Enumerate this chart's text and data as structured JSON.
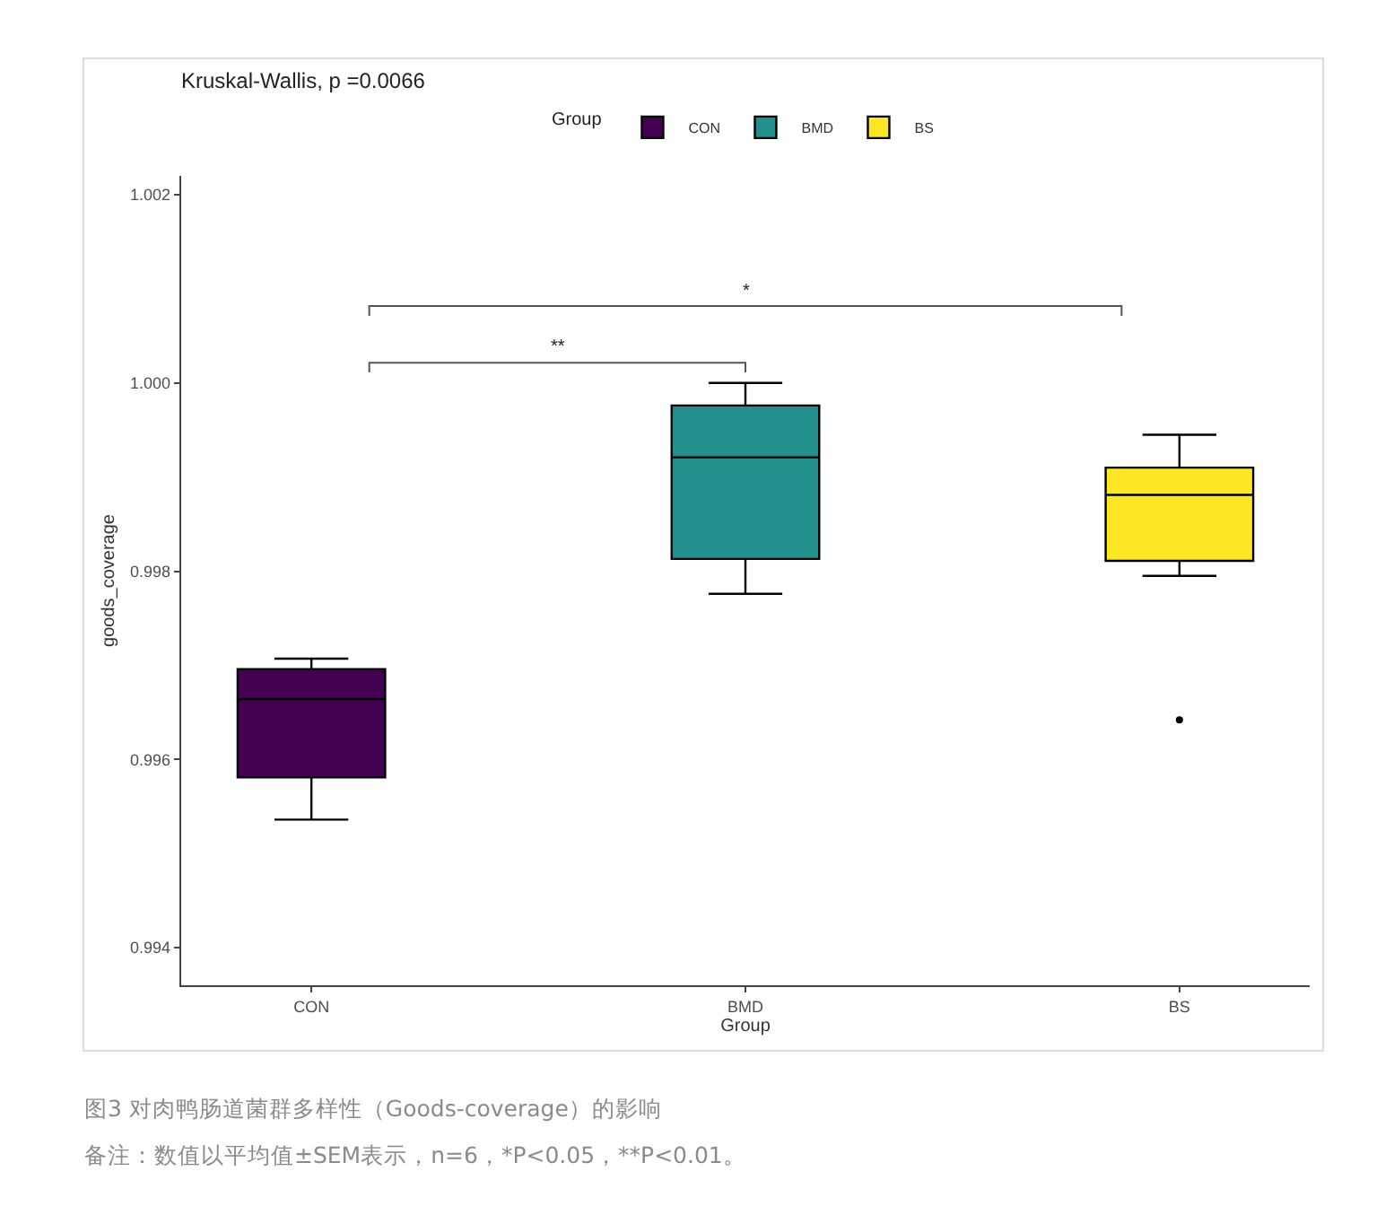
{
  "chart_data": {
    "type": "box",
    "title": "Kruskal-Wallis, p =0.0066",
    "xlabel": "Group",
    "ylabel": "goods_coverage",
    "legend_title": "Group",
    "categories": [
      "CON",
      "BMD",
      "BS"
    ],
    "series": [
      {
        "name": "CON",
        "color": "#440154",
        "boxes": [
          {
            "low": 0.99536,
            "q1": 0.99581,
            "median": 0.99664,
            "q3": 0.99696,
            "high": 0.99707
          },
          null,
          null
        ]
      },
      {
        "name": "BMD",
        "color": "#21908c",
        "boxes": [
          null,
          {
            "low": 0.99776,
            "q1": 0.99813,
            "median": 0.99921,
            "q3": 0.99976,
            "high": 1.0
          },
          null
        ]
      },
      {
        "name": "BS",
        "color": "#fde725",
        "boxes": [
          null,
          null,
          {
            "low": 0.99795,
            "q1": 0.99811,
            "median": 0.99881,
            "q3": 0.9991,
            "high": 0.99945,
            "outliers": [
              0.99642
            ]
          }
        ]
      }
    ],
    "ylim": [
      0.9936,
      1.0022
    ],
    "yticks": [
      0.994,
      0.996,
      0.998,
      {
        "value": 1,
        "label": "1.000"
      },
      1.002
    ],
    "legend": "top",
    "annotations": [
      "**",
      "*",
      "图3 对肉鸭肠道菌群多样性（Goods-coverage）的影响",
      "备注：数值以平均值±SEM表示，n=6，*P<0.05，**P<0.01。"
    ]
  }
}
